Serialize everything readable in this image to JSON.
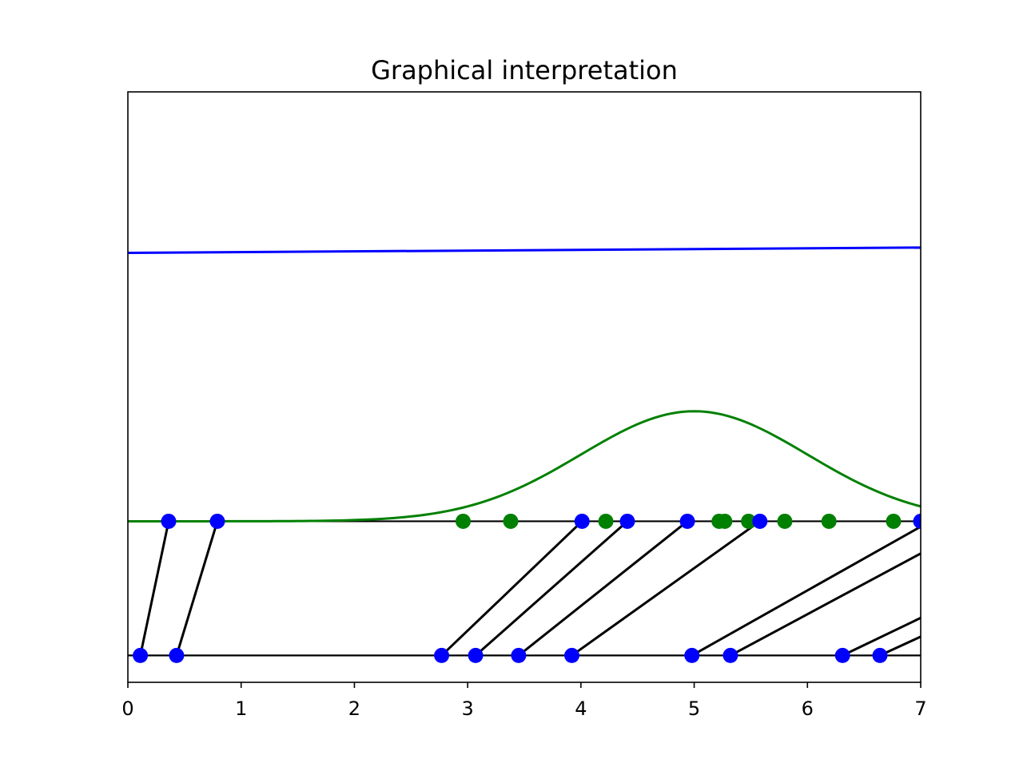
{
  "chart_data": {
    "type": "line",
    "title": "Graphical interpretation",
    "xlim": [
      0,
      7
    ],
    "x_ticks": [
      "0",
      "1",
      "2",
      "3",
      "4",
      "5",
      "6",
      "7"
    ],
    "y_ticks_shown": false,
    "grid": false,
    "series": [
      {
        "mark": "blue-line",
        "color": "#0000ff",
        "x": [
          0,
          7
        ],
        "y": [
          1.0,
          1.02
        ]
      },
      {
        "mark": "green-gaussian-curve",
        "color": "#008000",
        "curve": {
          "mean": 5.0,
          "std": 1.0,
          "peak_height": 0.41,
          "baseline": 0.0
        }
      },
      {
        "mark": "green-points-on-upper-axis",
        "color": "#008000",
        "x": [
          2.96,
          3.38,
          4.22,
          5.22,
          5.27,
          5.48,
          5.8,
          6.19,
          6.76
        ],
        "y": [
          0,
          0,
          0,
          0,
          0,
          0,
          0,
          0,
          0
        ]
      },
      {
        "mark": "blue-points-on-upper-axis",
        "color": "#0000ff",
        "x": [
          0.36,
          0.79,
          4.01,
          4.41,
          4.94,
          5.58,
          7.0
        ],
        "y": [
          0,
          0,
          0,
          0,
          0,
          0,
          0
        ]
      },
      {
        "mark": "blue-points-on-lower-axis",
        "color": "#0000ff",
        "x": [
          0.11,
          0.43,
          2.77,
          3.07,
          3.45,
          3.92,
          4.98,
          5.32,
          6.31,
          6.64
        ],
        "y": [
          -0.5,
          -0.5,
          -0.5,
          -0.5,
          -0.5,
          -0.5,
          -0.5,
          -0.5,
          -0.5,
          -0.5
        ]
      },
      {
        "mark": "mapping-lines",
        "color": "#000000",
        "segments": [
          [
            [
              0.11,
              -0.5
            ],
            [
              0.36,
              0.0
            ]
          ],
          [
            [
              0.43,
              -0.5
            ],
            [
              0.79,
              0.0
            ]
          ],
          [
            [
              2.77,
              -0.5
            ],
            [
              4.01,
              0.0
            ]
          ],
          [
            [
              3.07,
              -0.5
            ],
            [
              4.41,
              0.0
            ]
          ],
          [
            [
              3.45,
              -0.5
            ],
            [
              4.94,
              0.0
            ]
          ],
          [
            [
              3.92,
              -0.5
            ],
            [
              5.58,
              0.0
            ]
          ],
          [
            [
              4.98,
              -0.5
            ],
            [
              7.0,
              -0.02
            ]
          ],
          [
            [
              5.32,
              -0.5
            ],
            [
              7.0,
              -0.12
            ]
          ],
          [
            [
              6.31,
              -0.5
            ],
            [
              7.0,
              -0.36
            ]
          ],
          [
            [
              6.64,
              -0.5
            ],
            [
              7.0,
              -0.43
            ]
          ]
        ]
      }
    ],
    "reference_lines_y": [
      0.0,
      -0.5
    ]
  }
}
